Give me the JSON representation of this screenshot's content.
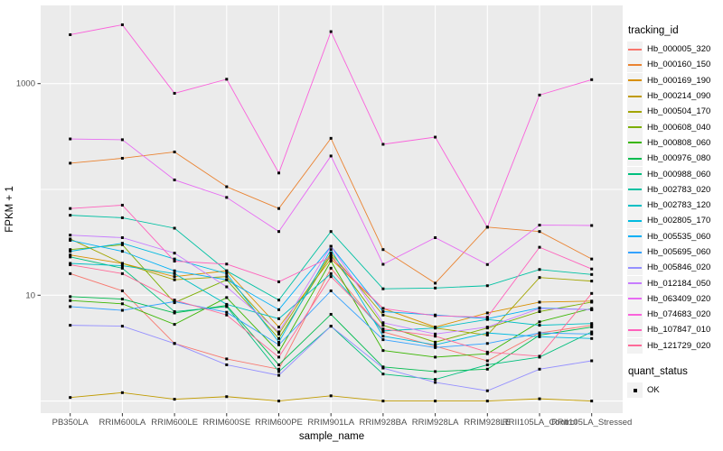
{
  "chart_data": {
    "type": "line",
    "title": "",
    "xlabel": "sample_name",
    "ylabel": "FPKM + 1",
    "yscale": "log10",
    "ylim": [
      0.8,
      5000
    ],
    "grid": "on",
    "panel_bg": "#EBEBEB",
    "grid_color": "#FFFFFF",
    "tick_label_color": "#4D4D4D",
    "marker": {
      "shape": "square",
      "color": "#000000",
      "size": 3
    },
    "gridlines_y": [
      1,
      10,
      100,
      1000
    ],
    "yticks_labeled": [
      {
        "value": 10,
        "label": "10"
      },
      {
        "value": 1000,
        "label": "1000"
      }
    ],
    "categories": [
      "PB350LA",
      "RRIM600LA",
      "RRIM600LE",
      "RRIM600SE",
      "RRIM600PE",
      "RRIM901LA",
      "RRIM928BA",
      "RRIM928LA",
      "RRIM928LE",
      "RRII105LA_Control",
      "RRII105LA_Stressed"
    ],
    "legend_position": "right",
    "legend_title": "tracking_id",
    "legend2_title": "quant_status",
    "legend2_items": [
      {
        "label": "OK",
        "marker": "black-square"
      }
    ],
    "series": [
      {
        "name": "Hb_000005_320",
        "color": "#F8766D",
        "values": [
          16,
          11,
          3.5,
          2.5,
          2.0,
          18,
          4.5,
          3.3,
          2.4,
          4.4,
          5.2
        ]
      },
      {
        "name": "Hb_000160_150",
        "color": "#EA8331",
        "values": [
          177,
          197,
          226,
          106,
          66,
          304,
          27,
          13,
          44,
          40,
          22
        ]
      },
      {
        "name": "Hb_000169_190",
        "color": "#D89000",
        "values": [
          24,
          20,
          15,
          17,
          5.0,
          22,
          7.5,
          5.0,
          6.8,
          8.6,
          8.8
        ]
      },
      {
        "name": "Hb_000214_090",
        "color": "#C09B00",
        "values": [
          1.08,
          1.2,
          1.04,
          1.1,
          1.0,
          1.12,
          1.0,
          1.0,
          1.0,
          1.05,
          1.0
        ]
      },
      {
        "name": "Hb_000504_170",
        "color": "#A3A500",
        "values": [
          34,
          20,
          14,
          15,
          4.3,
          25,
          6.5,
          4.9,
          4.2,
          14.7,
          13.6
        ]
      },
      {
        "name": "Hb_000608_040",
        "color": "#7CAE00",
        "values": [
          27,
          30,
          8.5,
          14,
          3.9,
          24,
          5.2,
          3.6,
          4.9,
          7.0,
          8.6
        ]
      },
      {
        "name": "Hb_000808_060",
        "color": "#39B600",
        "values": [
          8.9,
          8.3,
          5.3,
          9.5,
          2.9,
          21,
          3.0,
          2.6,
          2.8,
          5.6,
          7.5
        ]
      },
      {
        "name": "Hb_000976_080",
        "color": "#00BB4E",
        "values": [
          9.7,
          9.2,
          6.8,
          8.0,
          2.2,
          6.6,
          2.1,
          1.9,
          2.0,
          4.2,
          5.0
        ]
      },
      {
        "name": "Hb_000988_060",
        "color": "#00BF7D",
        "values": [
          23,
          18,
          7.0,
          7.8,
          1.9,
          5.1,
          1.8,
          1.6,
          2.2,
          2.6,
          4.5
        ]
      },
      {
        "name": "Hb_002783_020",
        "color": "#00C1A3",
        "values": [
          57,
          54,
          43,
          17,
          9.0,
          40,
          11.5,
          11.7,
          12.3,
          17.5,
          15.7
        ]
      },
      {
        "name": "Hb_002783_120",
        "color": "#00BFC4",
        "values": [
          20,
          19,
          16,
          8.2,
          6.0,
          16,
          4.6,
          4.9,
          5.9,
          5.2,
          5.4
        ]
      },
      {
        "name": "Hb_002805_170",
        "color": "#00BAE0",
        "values": [
          26,
          31,
          22,
          16,
          3.6,
          27,
          4.1,
          3.4,
          4.4,
          4.05,
          3.9
        ]
      },
      {
        "name": "Hb_005535_060",
        "color": "#00B0F6",
        "values": [
          33,
          26,
          17,
          14,
          7.3,
          29,
          7.0,
          6.5,
          6.0,
          7.6,
          7.3
        ]
      },
      {
        "name": "Hb_005695_060",
        "color": "#35A2FF",
        "values": [
          7.8,
          7.2,
          8.7,
          6.9,
          3.4,
          11,
          3.8,
          3.2,
          3.5,
          4.4,
          4.3
        ]
      },
      {
        "name": "Hb_005846_020",
        "color": "#9590FF",
        "values": [
          5.2,
          5.1,
          3.5,
          2.2,
          1.75,
          5.1,
          2.05,
          1.5,
          1.25,
          2.0,
          2.4
        ]
      },
      {
        "name": "Hb_012184_050",
        "color": "#C77CFF",
        "values": [
          37,
          35,
          25,
          12,
          4.5,
          29,
          5.5,
          4.3,
          5.0,
          7.5,
          7.3
        ]
      },
      {
        "name": "Hb_063409_020",
        "color": "#E76BF3",
        "values": [
          300,
          295,
          123,
          84,
          40,
          207,
          19.6,
          35,
          19.5,
          46,
          45.6
        ]
      },
      {
        "name": "Hb_074683_020",
        "color": "#FA62DB",
        "values": [
          2900,
          3600,
          810,
          1100,
          143,
          3100,
          267,
          312,
          44,
          780,
          1090
        ]
      },
      {
        "name": "Hb_107847_010",
        "color": "#FF62BC",
        "values": [
          66,
          71,
          21,
          19.7,
          13.4,
          23,
          7.5,
          6.4,
          6.2,
          28.4,
          17.7
        ]
      },
      {
        "name": "Hb_121729_020",
        "color": "#FF6A98",
        "values": [
          19.4,
          16,
          9.0,
          6.5,
          2.6,
          15,
          4.8,
          4.1,
          2.9,
          2.65,
          10.4
        ]
      }
    ]
  }
}
